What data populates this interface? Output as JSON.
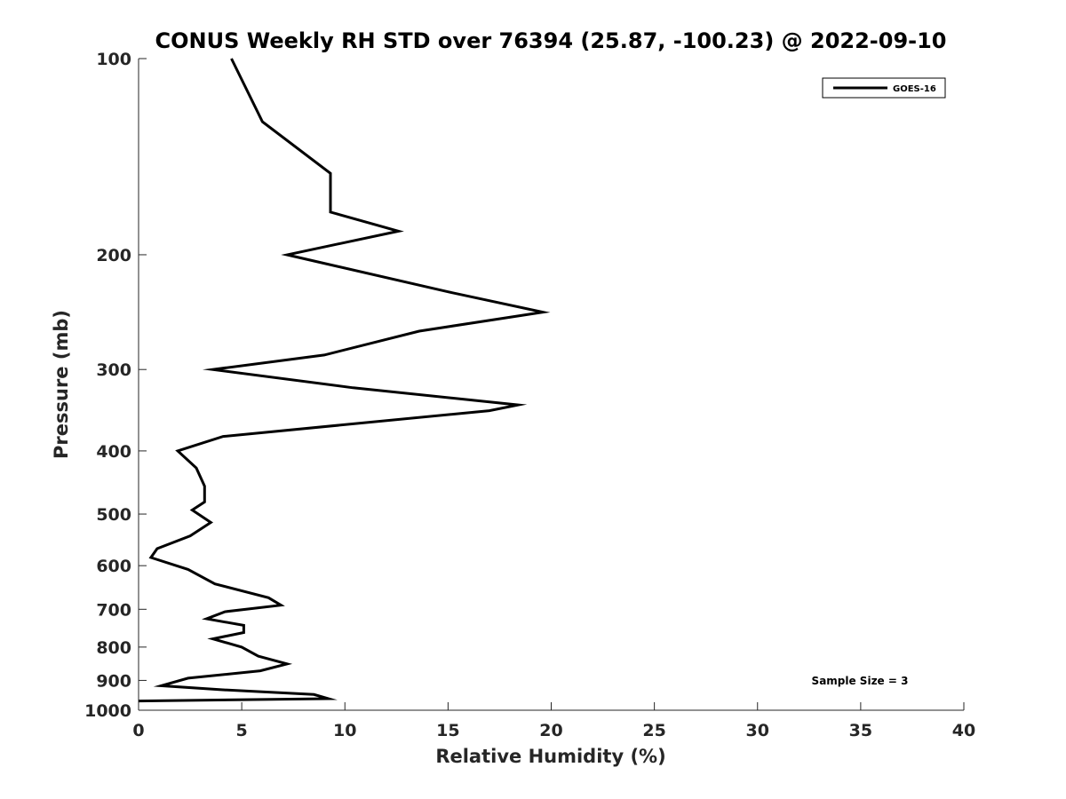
{
  "chart_data": {
    "type": "line",
    "title": "CONUS Weekly RH STD over 76394 (25.87, -100.23) @ 2022-09-10",
    "xlabel": "Relative Humidity (%)",
    "ylabel": "Pressure (mb)",
    "xlim": [
      0,
      40
    ],
    "ylim": [
      100,
      1000
    ],
    "y_scale": "log",
    "y_reversed": true,
    "x_ticks": [
      "0",
      "5",
      "10",
      "15",
      "20",
      "25",
      "30",
      "35",
      "40"
    ],
    "y_ticks": [
      "100",
      "200",
      "300",
      "400",
      "500",
      "600",
      "700",
      "800",
      "900",
      "1000"
    ],
    "grid": false,
    "legend_position": "top-right",
    "annotation": "Sample Size = 3",
    "series": [
      {
        "name": "GOES-16",
        "color": "#000000",
        "x": [
          4.5,
          6.0,
          9.3,
          9.3,
          12.6,
          7.2,
          15.0,
          19.6,
          13.6,
          9.0,
          3.6,
          10.4,
          18.4,
          17.0,
          4.1,
          1.9,
          2.8,
          3.2,
          3.2,
          2.6,
          3.5,
          2.5,
          0.9,
          0.6,
          2.4,
          3.7,
          6.3,
          6.9,
          4.2,
          3.3,
          5.1,
          5.1,
          3.6,
          5.0,
          5.8,
          7.2,
          5.9,
          2.4,
          1.1,
          4.0,
          8.5,
          9.2,
          0.0
        ],
        "y": [
          100,
          125,
          150,
          172,
          184,
          200,
          228,
          245,
          262,
          285,
          300,
          320,
          340,
          347,
          380,
          400,
          425,
          453,
          479,
          493,
          515,
          540,
          565,
          583,
          608,
          640,
          672,
          690,
          706,
          724,
          741,
          760,
          777,
          800,
          826,
          849,
          870,
          893,
          917,
          930,
          946,
          960,
          968
        ]
      }
    ]
  }
}
